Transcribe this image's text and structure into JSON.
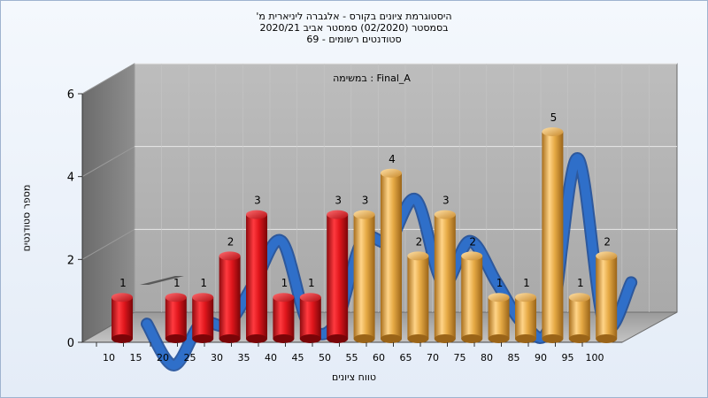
{
  "chart_data": {
    "type": "bar",
    "title_lines": [
      "היסטוגרמת ציונים בקורס - אלגברה ליניארית מ'",
      "בסמסטר  (02/2020)  סמסטר אביב 2020/21",
      "סטודנטים רשומים - 69"
    ],
    "subtitle": "במשימה : Final_A",
    "xlabel": "טווח ציונים",
    "ylabel": "מספר סטודנטים",
    "x_ticks": [
      "10",
      "15",
      "20",
      "25",
      "30",
      "35",
      "40",
      "45",
      "50",
      "55",
      "60",
      "65",
      "70",
      "75",
      "80",
      "85",
      "90",
      "95",
      "100"
    ],
    "y_ticks": [
      "0",
      "2",
      "4",
      "6"
    ],
    "ylim": [
      0,
      6
    ],
    "categories": [
      "10",
      "15",
      "20",
      "25",
      "30",
      "35",
      "40",
      "45",
      "50",
      "55",
      "60",
      "65",
      "70",
      "75",
      "80",
      "85",
      "90",
      "95",
      "100"
    ],
    "values": [
      1,
      0,
      1,
      1,
      2,
      3,
      1,
      1,
      3,
      3,
      4,
      2,
      3,
      2,
      1,
      1,
      5,
      1,
      2
    ],
    "value_labels": [
      "1",
      "",
      "1",
      "1",
      "2",
      "3",
      "1",
      "1",
      "3",
      "3",
      "4",
      "2",
      "3",
      "2",
      "1",
      "1",
      "5",
      "1",
      "2"
    ],
    "bar_colors": [
      "red",
      "red",
      "red",
      "red",
      "red",
      "red",
      "red",
      "red",
      "red",
      "orange",
      "orange",
      "orange",
      "orange",
      "orange",
      "orange",
      "orange",
      "orange",
      "orange",
      "orange"
    ],
    "series": [
      {
        "values": [
          1,
          0,
          1,
          1,
          2,
          3,
          1,
          1,
          3,
          3,
          4,
          2,
          3,
          2,
          1,
          1,
          5,
          1,
          2
        ]
      }
    ],
    "trend_line": true,
    "grid": true,
    "colors": {
      "red_bar": "#e0161c",
      "orange_bar": "#e6aa45",
      "trend": "#2f6fc9",
      "wall": "#b0b0b0",
      "side_wall": "#7a7a7a"
    }
  }
}
